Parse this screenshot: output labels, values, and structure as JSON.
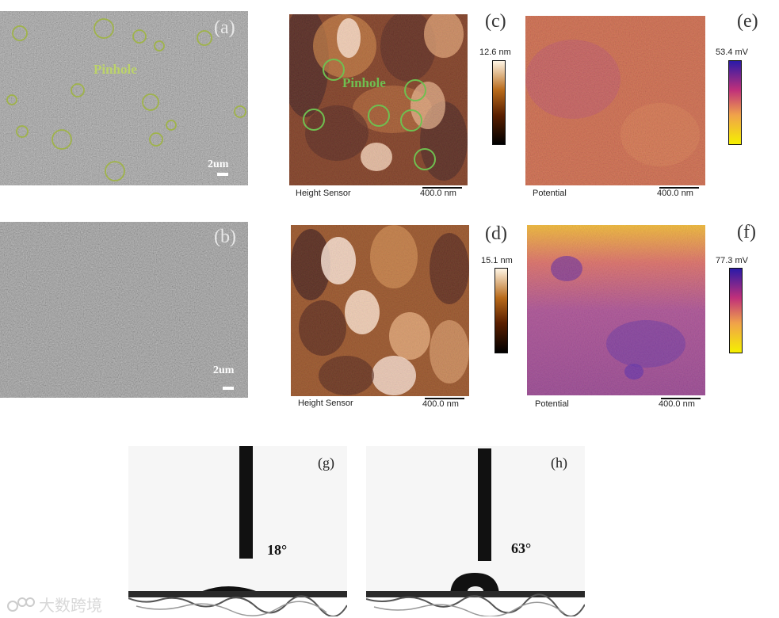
{
  "panels": {
    "a": {
      "label": "(a)",
      "pinhole_label": "Pinhole",
      "scale_label": "2um"
    },
    "b": {
      "label": "(b)",
      "scale_label": "2um"
    },
    "c": {
      "label": "(c)",
      "pinhole_label": "Pinhole",
      "caption": "Height Sensor",
      "scale_label": "400.0 nm",
      "colorbar_max": "12.6 nm"
    },
    "d": {
      "label": "(d)",
      "caption": "Height Sensor",
      "scale_label": "400.0 nm",
      "colorbar_max": "15.1 nm"
    },
    "e": {
      "label": "(e)",
      "caption": "Potential",
      "scale_label": "400.0 nm",
      "colorbar_max": "53.4 mV"
    },
    "f": {
      "label": "(f)",
      "caption": "Potential",
      "scale_label": "400.0 nm",
      "colorbar_max": "77.3 mV"
    },
    "g": {
      "label": "(g)",
      "angle": "18°"
    },
    "h": {
      "label": "(h)",
      "angle": "63°"
    }
  },
  "watermark": "大数跨境"
}
